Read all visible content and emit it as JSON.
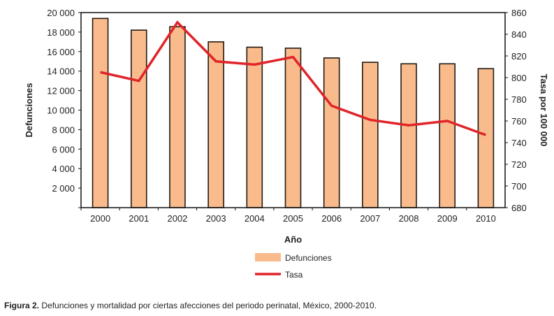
{
  "chart_data": {
    "type": "bar+line",
    "categories": [
      "2000",
      "2001",
      "2002",
      "2003",
      "2004",
      "2005",
      "2006",
      "2007",
      "2008",
      "2009",
      "2010"
    ],
    "series": [
      {
        "name": "Defunciones",
        "type": "bar",
        "axis": "left",
        "color": "#f9bb8b",
        "values": [
          19400,
          18200,
          18550,
          17000,
          16450,
          16350,
          15350,
          14900,
          14750,
          14750,
          14250
        ]
      },
      {
        "name": "Tasa",
        "type": "line",
        "axis": "right",
        "color": "#e0242a",
        "values": [
          805,
          797,
          851,
          815,
          812,
          819,
          774,
          761,
          756,
          760,
          747
        ]
      }
    ],
    "xlabel": "Año",
    "ylabel": "Defunciones",
    "ylabel_right": "Tasa por 100 000",
    "ylim": [
      0,
      20000
    ],
    "ylim_right": [
      680,
      860
    ],
    "yticks": [
      "",
      "2 000",
      "4 000",
      "6 000",
      "8 000",
      "10 000",
      "12 000",
      "14 000",
      "16 000",
      "18 000",
      "20 000"
    ],
    "yticks_right": [
      "680",
      "700",
      "720",
      "740",
      "760",
      "780",
      "800",
      "820",
      "840",
      "860"
    ],
    "legend_position": "bottom-center"
  },
  "caption": {
    "label": "Figura 2.",
    "text": " Defunciones y mortalidad por ciertas afecciones del periodo perinatal, México, 2000-2010."
  }
}
